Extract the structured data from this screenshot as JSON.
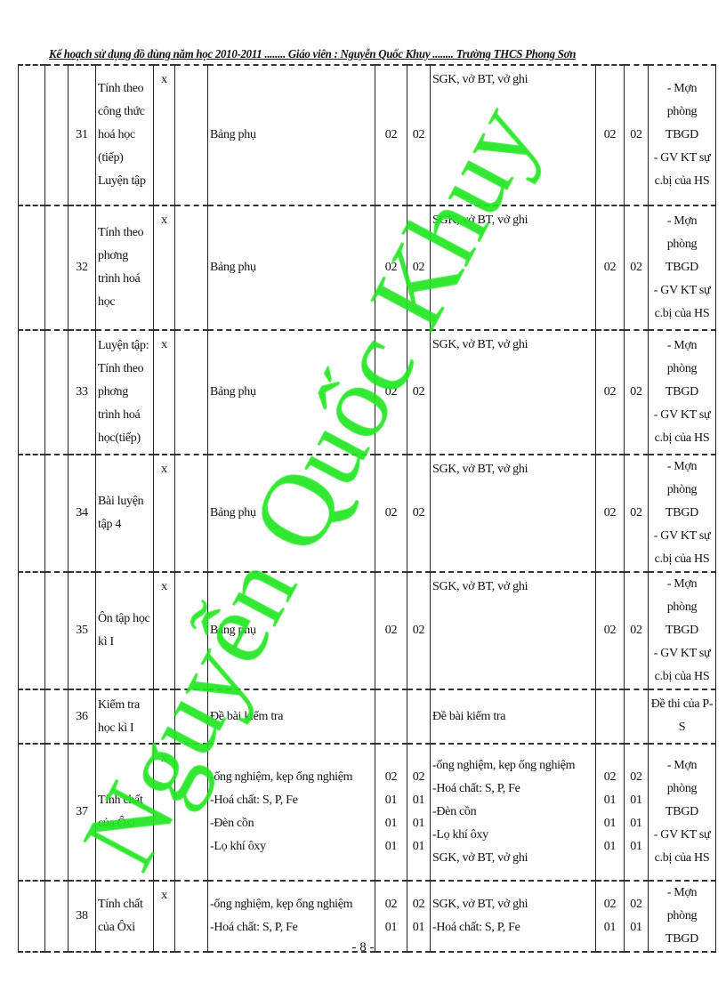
{
  "header": "Kế hoạch sử dụng đồ dùng năm học 2010-2011 ........ Giáo viên : Nguyễn Quốc Khuy ........ Trường THCS Phong Sơn",
  "watermark": "Nguyễn Quốc Khuy",
  "page_number": "- 8 -",
  "rows": [
    {
      "no": "31",
      "lesson": [
        "Tính theo",
        "công thức",
        "hoá học",
        "(tiếp)",
        "Luyện tập"
      ],
      "mark": "x",
      "equip": [
        "Bảng phụ"
      ],
      "q1": [
        "02"
      ],
      "q2": [
        "02"
      ],
      "student": [
        "SGK, vở BT, vở ghi"
      ],
      "q3": [
        "02"
      ],
      "q4": [
        "02"
      ],
      "note": [
        "- Mợn",
        "phòng TBGD",
        "- GV KT sự",
        "c.bị của HS"
      ]
    },
    {
      "no": "32",
      "lesson": [
        "Tính theo",
        "phơng",
        "trình hoá",
        "học"
      ],
      "mark": "x",
      "equip": [
        "Bảng phụ"
      ],
      "q1": [
        "02"
      ],
      "q2": [
        "02"
      ],
      "student": [
        "SGK, vở BT, vở ghi"
      ],
      "q3": [
        "02"
      ],
      "q4": [
        "02"
      ],
      "note": [
        "- Mợn",
        "phòng TBGD",
        "- GV KT sự",
        "c.bị của HS"
      ]
    },
    {
      "no": "33",
      "lesson": [
        "Luyện tập:",
        "Tính theo",
        "phơng",
        "trình hoá",
        "học(tiếp)"
      ],
      "mark": "x",
      "equip": [
        "Bảng phụ"
      ],
      "q1": [
        "02"
      ],
      "q2": [
        "02"
      ],
      "student": [
        "SGK, vở BT, vở ghi"
      ],
      "q3": [
        "02"
      ],
      "q4": [
        "02"
      ],
      "note": [
        "- Mợn",
        "phòng TBGD",
        "- GV KT sự",
        "c.bị của HS"
      ]
    },
    {
      "no": "34",
      "lesson": [
        "Bài luyện",
        "tập 4"
      ],
      "mark": "x",
      "equip": [
        "Bảng phụ"
      ],
      "q1": [
        "02"
      ],
      "q2": [
        "02"
      ],
      "student": [
        "SGK, vở BT, vở ghi"
      ],
      "q3": [
        "02"
      ],
      "q4": [
        "02"
      ],
      "note": [
        "- Mợn",
        "phòng TBGD",
        "- GV KT sự",
        "c.bị của HS"
      ]
    },
    {
      "no": "35",
      "lesson": [
        "Ôn tập học",
        "kì I"
      ],
      "mark": "x",
      "equip": [
        "Bảng phụ"
      ],
      "q1": [
        "02"
      ],
      "q2": [
        "02"
      ],
      "student": [
        "SGK, vở BT, vở ghi"
      ],
      "q3": [
        "02"
      ],
      "q4": [
        "02"
      ],
      "note": [
        "- Mợn",
        "phòng TBGD",
        "- GV KT sự",
        "c.bị của HS"
      ]
    },
    {
      "no": "36",
      "lesson": [
        "Kiểm tra",
        "học kì I"
      ],
      "mark": "",
      "equip": [
        "Đề bài kiểm tra"
      ],
      "q1": [],
      "q2": [],
      "student": [
        "Đề bài kiểm tra"
      ],
      "q3": [],
      "q4": [],
      "note": [
        "Đề thi của P-",
        "S"
      ]
    },
    {
      "no": "37",
      "lesson": [
        "Tính chất",
        "của Ôxi"
      ],
      "mark": "x",
      "equip": [
        "-ống nghiệm, kẹp ống nghiệm",
        "-Hoá chất: S, P, Fe",
        "-Đèn cồn",
        "-Lọ khí ôxy"
      ],
      "q1": [
        "02",
        "01",
        "01",
        "01"
      ],
      "q2": [
        "02",
        "01",
        "01",
        "01"
      ],
      "student": [
        "-ống nghiệm, kẹp ống nghiệm",
        "-Hoá chất: S, P, Fe",
        "-Đèn cồn",
        "-Lọ khí ôxy",
        "SGK, vở BT, vở ghi"
      ],
      "q3": [
        "02",
        "01",
        "01",
        "01"
      ],
      "q4": [
        "02",
        "01",
        "01",
        "01"
      ],
      "note": [
        "- Mợn",
        "phòng TBGD",
        "- GV KT sự",
        "c.bị của HS"
      ]
    },
    {
      "no": "38",
      "lesson": [
        "Tính chất",
        "của Ôxi"
      ],
      "mark": "x",
      "equip": [
        "-ống nghiệm, kẹp ống nghiệm",
        "-Hoá chất: S, P, Fe"
      ],
      "q1": [
        "02",
        "01"
      ],
      "q2": [
        "02",
        "01"
      ],
      "student": [
        "SGK, vở BT, vở ghi",
        "-Hoá chất: S, P, Fe"
      ],
      "q3": [
        "02",
        "01"
      ],
      "q4": [
        "02",
        "01"
      ],
      "note": [
        "- Mợn",
        "phòng TBGD"
      ]
    }
  ]
}
